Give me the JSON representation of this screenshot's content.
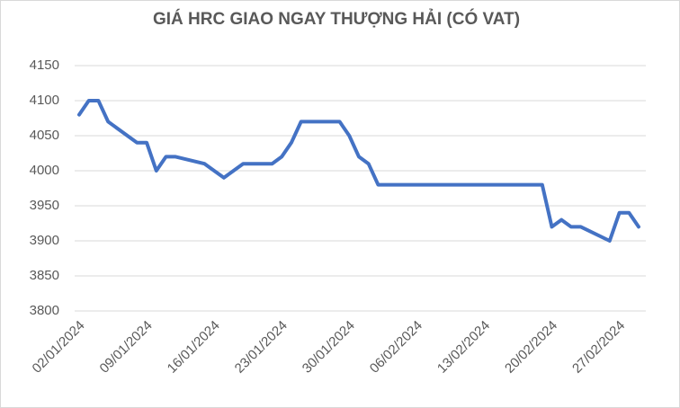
{
  "chart_data": {
    "type": "line",
    "title": "GIÁ HRC GIAO NGAY THƯỢNG HẢI (CÓ VAT)",
    "x": [
      "02/01/2024",
      "03/01/2024",
      "04/01/2024",
      "05/01/2024",
      "08/01/2024",
      "09/01/2024",
      "10/01/2024",
      "11/01/2024",
      "12/01/2024",
      "15/01/2024",
      "16/01/2024",
      "17/01/2024",
      "18/01/2024",
      "19/01/2024",
      "22/01/2024",
      "23/01/2024",
      "24/01/2024",
      "25/01/2024",
      "26/01/2024",
      "29/01/2024",
      "30/01/2024",
      "31/01/2024",
      "01/02/2024",
      "02/02/2024",
      "05/02/2024",
      "06/02/2024",
      "07/02/2024",
      "15/02/2024",
      "16/02/2024",
      "19/02/2024",
      "20/02/2024",
      "21/02/2024",
      "22/02/2024",
      "23/02/2024",
      "26/02/2024",
      "27/02/2024",
      "28/02/2024",
      "29/02/2024"
    ],
    "series": [
      {
        "name": "HRC",
        "color": "#4472c4",
        "values": [
          4080,
          4100,
          4100,
          4070,
          4040,
          4040,
          4000,
          4020,
          4020,
          4010,
          4000,
          3990,
          4000,
          4010,
          4010,
          4020,
          4040,
          4070,
          4070,
          4070,
          4050,
          4020,
          4010,
          3980,
          3980,
          3980,
          3980,
          3980,
          3980,
          3980,
          3920,
          3930,
          3920,
          3920,
          3900,
          3940,
          3940,
          3920
        ]
      }
    ],
    "xlim": [
      "02/01/2024",
      "29/02/2024"
    ],
    "xticks": [
      "02/01/2024",
      "09/01/2024",
      "16/01/2024",
      "23/01/2024",
      "30/01/2024",
      "06/02/2024",
      "13/02/2024",
      "20/02/2024",
      "27/02/2024"
    ],
    "ylim": [
      3800,
      4150
    ],
    "yticks": [
      3800,
      3850,
      3900,
      3950,
      4000,
      4050,
      4100,
      4150
    ],
    "grid": true
  }
}
